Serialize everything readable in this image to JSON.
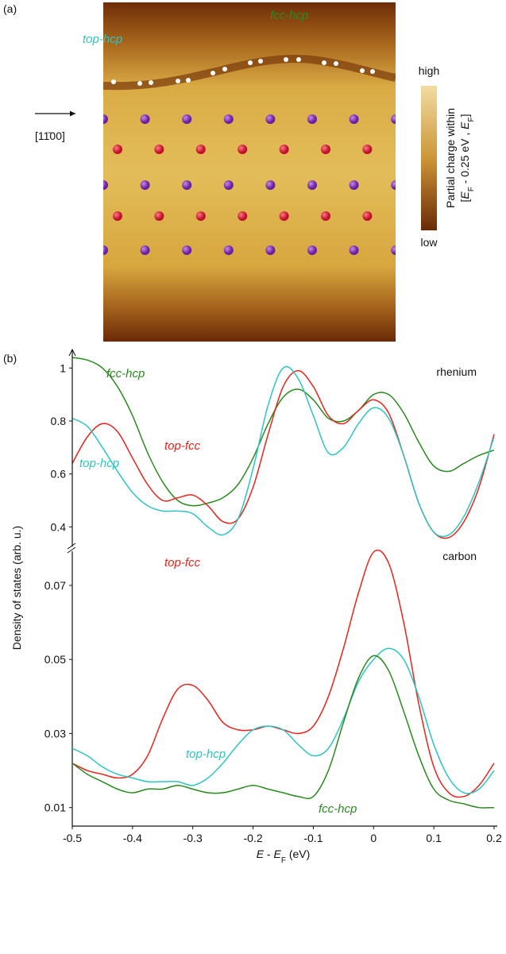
{
  "panel_a": {
    "label": "(a)",
    "annotations": [
      "top-hcp",
      "fcc-hcp"
    ],
    "direction": "[11̄00]",
    "colorbar": {
      "high": "high",
      "low": "low",
      "title_line1": "Partial charge within",
      "title_line2": [
        "[",
        "E",
        "F",
        " - 0.25 eV , ",
        "E",
        "F",
        "]"
      ]
    }
  },
  "panel_b_label": "(b)",
  "chart_data": [
    {
      "type": "line",
      "title": "rhenium",
      "ylabel": "Density of states (arb. u.)",
      "x": [
        -0.5,
        -0.475,
        -0.45,
        -0.425,
        -0.4,
        -0.375,
        -0.35,
        -0.325,
        -0.3,
        -0.275,
        -0.25,
        -0.225,
        -0.2,
        -0.175,
        -0.15,
        -0.125,
        -0.1,
        -0.075,
        -0.05,
        -0.025,
        0,
        0.025,
        0.05,
        0.075,
        0.1,
        0.125,
        0.15,
        0.175,
        0.2
      ],
      "xlim": [
        -0.5,
        0.2
      ],
      "ylim": [
        0.32,
        1.07
      ],
      "yticks": [
        0.4,
        0.6,
        0.8,
        1
      ],
      "series": [
        {
          "name": "fcc-hcp",
          "color": "#2a8a1f",
          "values": [
            1.04,
            1.03,
            1.0,
            0.93,
            0.82,
            0.68,
            0.57,
            0.5,
            0.48,
            0.49,
            0.51,
            0.56,
            0.66,
            0.79,
            0.89,
            0.92,
            0.88,
            0.81,
            0.8,
            0.84,
            0.9,
            0.9,
            0.83,
            0.72,
            0.63,
            0.61,
            0.64,
            0.67,
            0.69
          ]
        },
        {
          "name": "top-fcc",
          "color": "#e8241c",
          "values": [
            0.64,
            0.74,
            0.79,
            0.76,
            0.66,
            0.56,
            0.5,
            0.51,
            0.52,
            0.48,
            0.42,
            0.43,
            0.55,
            0.75,
            0.93,
            0.99,
            0.93,
            0.82,
            0.79,
            0.84,
            0.88,
            0.83,
            0.67,
            0.49,
            0.38,
            0.36,
            0.42,
            0.55,
            0.75
          ]
        },
        {
          "name": "top-hcp",
          "color": "#2ec4c4",
          "values": [
            0.81,
            0.78,
            0.7,
            0.61,
            0.53,
            0.48,
            0.46,
            0.46,
            0.45,
            0.4,
            0.37,
            0.43,
            0.62,
            0.86,
            1.0,
            0.96,
            0.82,
            0.68,
            0.7,
            0.79,
            0.85,
            0.81,
            0.67,
            0.49,
            0.38,
            0.37,
            0.44,
            0.57,
            0.74
          ]
        }
      ]
    },
    {
      "type": "line",
      "title": "carbon",
      "xlabel": [
        "E",
        " - ",
        "E",
        "F",
        " (eV)"
      ],
      "x": [
        -0.5,
        -0.475,
        -0.45,
        -0.425,
        -0.4,
        -0.375,
        -0.35,
        -0.325,
        -0.3,
        -0.275,
        -0.25,
        -0.225,
        -0.2,
        -0.175,
        -0.15,
        -0.125,
        -0.1,
        -0.075,
        -0.05,
        -0.025,
        0,
        0.025,
        0.05,
        0.075,
        0.1,
        0.125,
        0.15,
        0.175,
        0.2
      ],
      "xlim": [
        -0.5,
        0.2
      ],
      "xticks": [
        -0.5,
        -0.4,
        -0.3,
        -0.2,
        -0.1,
        0,
        0.1,
        0.2
      ],
      "ylim": [
        0.005,
        0.079
      ],
      "yticks": [
        0.01,
        0.03,
        0.05,
        0.07
      ],
      "series": [
        {
          "name": "top-fcc",
          "color": "#e8241c",
          "values": [
            0.022,
            0.02,
            0.019,
            0.018,
            0.019,
            0.024,
            0.034,
            0.042,
            0.043,
            0.039,
            0.033,
            0.031,
            0.031,
            0.032,
            0.031,
            0.03,
            0.032,
            0.04,
            0.053,
            0.068,
            0.079,
            0.076,
            0.06,
            0.038,
            0.021,
            0.014,
            0.013,
            0.016,
            0.022
          ]
        },
        {
          "name": "top-hcp",
          "color": "#2ec4c4",
          "values": [
            0.026,
            0.024,
            0.021,
            0.019,
            0.018,
            0.017,
            0.017,
            0.017,
            0.016,
            0.018,
            0.022,
            0.027,
            0.031,
            0.032,
            0.031,
            0.027,
            0.024,
            0.026,
            0.034,
            0.044,
            0.05,
            0.053,
            0.05,
            0.04,
            0.027,
            0.018,
            0.014,
            0.015,
            0.02
          ]
        },
        {
          "name": "fcc-hcp",
          "color": "#2a8a1f",
          "values": [
            0.022,
            0.019,
            0.017,
            0.015,
            0.014,
            0.015,
            0.015,
            0.016,
            0.015,
            0.014,
            0.014,
            0.015,
            0.016,
            0.015,
            0.014,
            0.013,
            0.013,
            0.02,
            0.033,
            0.045,
            0.051,
            0.047,
            0.036,
            0.024,
            0.015,
            0.012,
            0.011,
            0.01,
            0.01
          ]
        }
      ]
    }
  ]
}
